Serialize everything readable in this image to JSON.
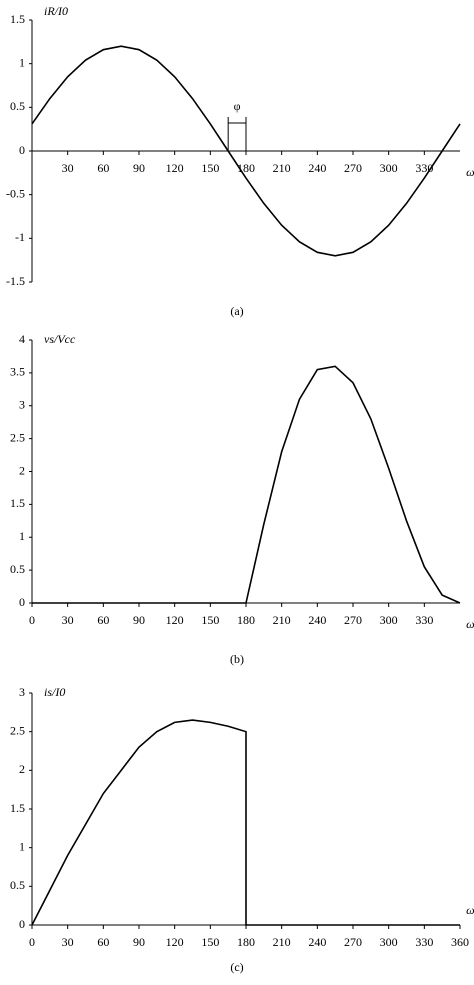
{
  "chart_data": [
    {
      "type": "line",
      "label": "(a)",
      "y_label": "iR/I0",
      "x_label": "ωt",
      "x": [
        0,
        15,
        30,
        45,
        60,
        75,
        90,
        105,
        120,
        135,
        150,
        165,
        180,
        195,
        210,
        225,
        240,
        255,
        270,
        285,
        300,
        315,
        330,
        345,
        360
      ],
      "series": [
        {
          "name": "iR/I0",
          "color": "#000000",
          "values": [
            0.31,
            0.6,
            0.85,
            1.04,
            1.16,
            1.2,
            1.16,
            1.04,
            0.85,
            0.6,
            0.31,
            0,
            -0.31,
            -0.6,
            -0.85,
            -1.04,
            -1.16,
            -1.2,
            -1.16,
            -1.04,
            -0.85,
            -0.6,
            -0.31,
            0,
            0.31
          ]
        }
      ],
      "xlim": [
        0,
        360
      ],
      "xticks": [
        30,
        60,
        90,
        120,
        150,
        180,
        210,
        240,
        270,
        300,
        330
      ],
      "ylim": [
        -1.5,
        1.5
      ],
      "yticks": [
        -1.5,
        -1,
        -0.5,
        0,
        0.5,
        1,
        1.5
      ],
      "annotation": {
        "text": "φ",
        "x": [
          165,
          180
        ]
      }
    },
    {
      "type": "line",
      "label": "(b)",
      "y_label": "vs/Vcc",
      "x_label": "ωt",
      "x": [
        0,
        15,
        30,
        45,
        60,
        75,
        90,
        105,
        120,
        135,
        150,
        165,
        180,
        195,
        210,
        225,
        240,
        255,
        270,
        285,
        300,
        315,
        330,
        345,
        360
      ],
      "series": [
        {
          "name": "vs/Vcc",
          "color": "#000000",
          "values": [
            0,
            0,
            0,
            0,
            0,
            0,
            0,
            0,
            0,
            0,
            0,
            0,
            0,
            1.2,
            2.3,
            3.1,
            3.55,
            3.6,
            3.35,
            2.8,
            2.05,
            1.25,
            0.55,
            0.12,
            0
          ]
        }
      ],
      "xlim": [
        0,
        360
      ],
      "xticks": [
        0,
        30,
        60,
        90,
        120,
        150,
        180,
        210,
        240,
        270,
        300,
        330
      ],
      "ylim": [
        0,
        4
      ],
      "yticks": [
        0,
        0.5,
        1,
        1.5,
        2,
        2.5,
        3,
        3.5,
        4
      ]
    },
    {
      "type": "line",
      "label": "(c)",
      "y_label": "is/I0",
      "x_label": "ωt",
      "x": [
        0,
        15,
        30,
        45,
        60,
        75,
        90,
        105,
        120,
        135,
        150,
        165,
        180,
        180,
        195,
        210,
        225,
        240,
        255,
        270,
        285,
        300,
        315,
        330,
        345,
        360
      ],
      "series": [
        {
          "name": "is/I0",
          "color": "#000000",
          "values": [
            0,
            0.45,
            0.9,
            1.3,
            1.7,
            2.0,
            2.3,
            2.5,
            2.62,
            2.65,
            2.62,
            2.57,
            2.5,
            0,
            0,
            0,
            0,
            0,
            0,
            0,
            0,
            0,
            0,
            0,
            0,
            0
          ]
        }
      ],
      "xlim": [
        0,
        360
      ],
      "xticks": [
        0,
        30,
        60,
        90,
        120,
        150,
        180,
        210,
        240,
        270,
        300,
        330,
        360
      ],
      "ylim": [
        0,
        3
      ],
      "yticks": [
        0,
        0.5,
        1,
        1.5,
        2,
        2.5,
        3
      ]
    }
  ]
}
